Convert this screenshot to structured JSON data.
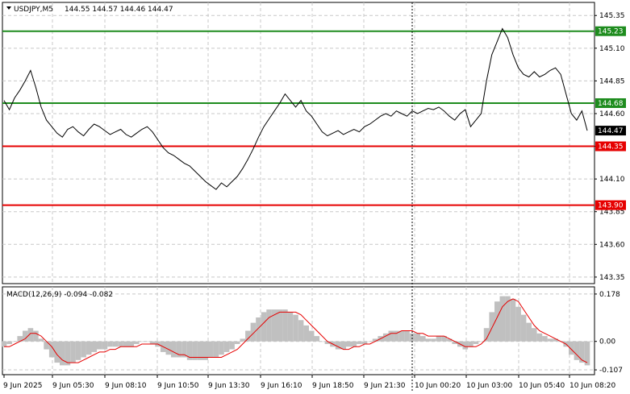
{
  "header": {
    "symbol": "USDJPY,M5",
    "ohlc": "144.55 144.57 144.46 144.47"
  },
  "macd_header": "MACD(12,26,9) -0.094 -0.082",
  "colors": {
    "price_line": "#000000",
    "grid": "#c8c8c8",
    "green_level": "#1e8c1e",
    "red_level": "#e60000",
    "histogram": "#c0c0c0",
    "signal": "#e60000",
    "current_price_tag": "#000000"
  },
  "chart_data": [
    {
      "type": "line",
      "title": "USDJPY,M5",
      "ylim": [
        143.3,
        145.45
      ],
      "y_ticks": [
        "145.35",
        "145.10",
        "144.85",
        "144.60",
        "144.35",
        "144.10",
        "143.85",
        "143.60",
        "143.35"
      ],
      "x_ticks": [
        "9 Jun 2025",
        "9 Jun 05:30",
        "9 Jun 08:10",
        "9 Jun 10:50",
        "9 Jun 13:30",
        "9 Jun 16:10",
        "9 Jun 18:50",
        "9 Jun 21:30",
        "10 Jun 00:20",
        "10 Jun 03:00",
        "10 Jun 05:40",
        "10 Jun 08:20"
      ],
      "levels": [
        {
          "value": "145.23",
          "color": "green"
        },
        {
          "value": "144.68",
          "color": "green"
        },
        {
          "value": "144.35",
          "color": "red"
        },
        {
          "value": "143.90",
          "color": "red"
        }
      ],
      "current_price": "144.47",
      "day_separator_x": "10 Jun 00:00",
      "series": [
        {
          "values": [
            144.7,
            144.63,
            144.72,
            144.78,
            144.85,
            144.93,
            144.8,
            144.65,
            144.55,
            144.5,
            144.45,
            144.42,
            144.48,
            144.5,
            144.46,
            144.43,
            144.48,
            144.52,
            144.5,
            144.47,
            144.44,
            144.46,
            144.48,
            144.44,
            144.42,
            144.45,
            144.48,
            144.5,
            144.46,
            144.4,
            144.34,
            144.3,
            144.28,
            144.25,
            144.22,
            144.2,
            144.16,
            144.12,
            144.08,
            144.05,
            144.02,
            144.07,
            144.04,
            144.08,
            144.12,
            144.18,
            144.25,
            144.33,
            144.42,
            144.5,
            144.56,
            144.62,
            144.68,
            144.75,
            144.7,
            144.65,
            144.7,
            144.62,
            144.58,
            144.52,
            144.46,
            144.43,
            144.45,
            144.47,
            144.44,
            144.46,
            144.48,
            144.46,
            144.5,
            144.52,
            144.55,
            144.58,
            144.6,
            144.58,
            144.62,
            144.6,
            144.58,
            144.62,
            144.6,
            144.62,
            144.64,
            144.63,
            144.65,
            144.62,
            144.58,
            144.55,
            144.6,
            144.63,
            144.5,
            144.55,
            144.6,
            144.85,
            145.05,
            145.15,
            145.25,
            145.18,
            145.05,
            144.95,
            144.9,
            144.88,
            144.92,
            144.88,
            144.9,
            144.93,
            144.95,
            144.9,
            144.75,
            144.6,
            144.55,
            144.62,
            144.47
          ],
          "x_range": [
            "9 Jun 2025",
            "10 Jun 08:20"
          ]
        }
      ]
    },
    {
      "type": "bar",
      "title": "MACD(12,26,9) -0.094 -0.082",
      "ylim": [
        -0.125,
        0.205
      ],
      "y_ticks": [
        "0.178",
        "0.00",
        "-0.107"
      ],
      "series": [
        {
          "name": "MACD",
          "values": [
            -0.02,
            -0.01,
            0.0,
            0.02,
            0.04,
            0.05,
            0.04,
            0.01,
            -0.03,
            -0.06,
            -0.08,
            -0.09,
            -0.09,
            -0.08,
            -0.07,
            -0.06,
            -0.05,
            -0.04,
            -0.03,
            -0.03,
            -0.02,
            -0.02,
            -0.02,
            -0.02,
            -0.02,
            -0.01,
            0.0,
            0.0,
            -0.01,
            -0.02,
            -0.04,
            -0.05,
            -0.06,
            -0.06,
            -0.06,
            -0.07,
            -0.07,
            -0.07,
            -0.07,
            -0.06,
            -0.06,
            -0.05,
            -0.04,
            -0.03,
            -0.01,
            0.01,
            0.04,
            0.07,
            0.09,
            0.11,
            0.12,
            0.12,
            0.12,
            0.12,
            0.11,
            0.1,
            0.08,
            0.06,
            0.04,
            0.02,
            0.0,
            -0.01,
            -0.02,
            -0.03,
            -0.03,
            -0.02,
            -0.02,
            -0.01,
            -0.01,
            0.0,
            0.01,
            0.02,
            0.03,
            0.04,
            0.04,
            0.04,
            0.04,
            0.03,
            0.03,
            0.02,
            0.01,
            0.01,
            0.02,
            0.02,
            0.01,
            -0.01,
            -0.02,
            -0.03,
            -0.02,
            -0.01,
            0.0,
            0.05,
            0.11,
            0.15,
            0.17,
            0.17,
            0.16,
            0.13,
            0.1,
            0.07,
            0.05,
            0.03,
            0.02,
            0.01,
            0.01,
            0.0,
            -0.02,
            -0.05,
            -0.07,
            -0.08,
            -0.09
          ]
        },
        {
          "name": "Signal",
          "values": [
            -0.02,
            -0.02,
            -0.01,
            0.0,
            0.01,
            0.03,
            0.03,
            0.02,
            0.0,
            -0.02,
            -0.05,
            -0.07,
            -0.08,
            -0.08,
            -0.08,
            -0.07,
            -0.06,
            -0.05,
            -0.04,
            -0.04,
            -0.03,
            -0.03,
            -0.02,
            -0.02,
            -0.02,
            -0.02,
            -0.01,
            -0.01,
            -0.01,
            -0.01,
            -0.02,
            -0.03,
            -0.04,
            -0.05,
            -0.05,
            -0.06,
            -0.06,
            -0.06,
            -0.06,
            -0.06,
            -0.06,
            -0.06,
            -0.05,
            -0.04,
            -0.03,
            -0.01,
            0.01,
            0.03,
            0.05,
            0.07,
            0.09,
            0.1,
            0.11,
            0.11,
            0.11,
            0.11,
            0.1,
            0.08,
            0.06,
            0.04,
            0.02,
            0.0,
            -0.01,
            -0.02,
            -0.03,
            -0.03,
            -0.02,
            -0.02,
            -0.01,
            -0.01,
            0.0,
            0.01,
            0.02,
            0.03,
            0.03,
            0.04,
            0.04,
            0.04,
            0.03,
            0.03,
            0.02,
            0.02,
            0.02,
            0.02,
            0.01,
            0.0,
            -0.01,
            -0.02,
            -0.02,
            -0.02,
            -0.01,
            0.01,
            0.05,
            0.09,
            0.13,
            0.15,
            0.16,
            0.15,
            0.12,
            0.09,
            0.06,
            0.04,
            0.03,
            0.02,
            0.01,
            0.0,
            -0.01,
            -0.03,
            -0.05,
            -0.07,
            -0.08
          ]
        }
      ]
    }
  ]
}
